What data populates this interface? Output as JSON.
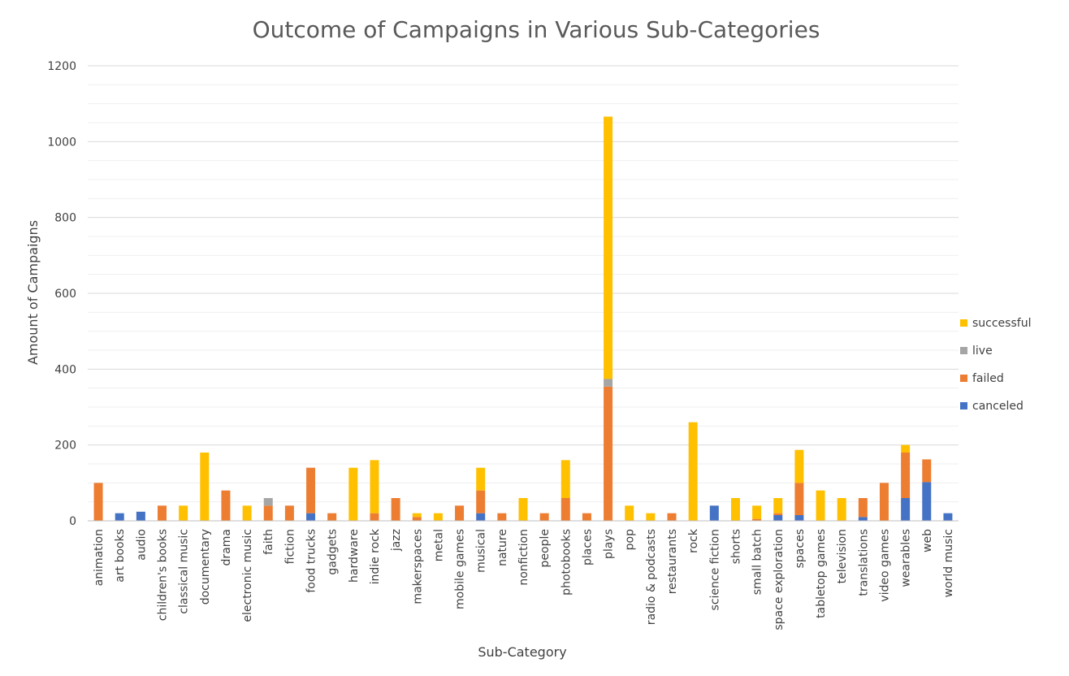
{
  "chart_data": {
    "type": "bar",
    "stacked": true,
    "title": "Outcome of Campaigns in Various Sub-Categories",
    "xlabel": "Sub-Category",
    "ylabel": "Amount of Campaigns",
    "ylim": [
      0,
      1200
    ],
    "yticks": [
      0,
      200,
      400,
      600,
      800,
      1000,
      1200
    ],
    "grid": true,
    "legend_position": "right",
    "categories": [
      "animation",
      "art books",
      "audio",
      "children's books",
      "classical music",
      "documentary",
      "drama",
      "electronic music",
      "faith",
      "fiction",
      "food trucks",
      "gadgets",
      "hardware",
      "indie rock",
      "jazz",
      "makerspaces",
      "metal",
      "mobile games",
      "musical",
      "nature",
      "nonfiction",
      "people",
      "photobooks",
      "places",
      "plays",
      "pop",
      "radio & podcasts",
      "restaurants",
      "rock",
      "science fiction",
      "shorts",
      "small batch",
      "space exploration",
      "spaces",
      "tabletop games",
      "television",
      "translations",
      "video games",
      "wearables",
      "web",
      "world music"
    ],
    "series": [
      {
        "name": "canceled",
        "color": "#4472C4",
        "values": [
          0,
          20,
          24,
          0,
          0,
          0,
          0,
          0,
          0,
          0,
          20,
          0,
          0,
          0,
          0,
          0,
          0,
          0,
          20,
          0,
          0,
          0,
          0,
          0,
          0,
          0,
          0,
          0,
          0,
          40,
          0,
          0,
          15,
          15,
          0,
          0,
          10,
          0,
          60,
          102,
          20
        ]
      },
      {
        "name": "failed",
        "color": "#ED7D31",
        "values": [
          100,
          0,
          0,
          40,
          0,
          0,
          80,
          0,
          40,
          40,
          120,
          20,
          0,
          20,
          60,
          10,
          0,
          40,
          60,
          20,
          0,
          20,
          60,
          20,
          354,
          0,
          0,
          20,
          0,
          0,
          0,
          5,
          5,
          85,
          0,
          0,
          50,
          100,
          120,
          60,
          0
        ]
      },
      {
        "name": "live",
        "color": "#A5A5A5",
        "values": [
          0,
          0,
          0,
          0,
          0,
          0,
          0,
          0,
          20,
          0,
          0,
          0,
          0,
          0,
          0,
          0,
          0,
          0,
          0,
          0,
          0,
          0,
          0,
          0,
          20,
          0,
          0,
          0,
          0,
          0,
          0,
          0,
          0,
          0,
          0,
          0,
          0,
          0,
          0,
          0,
          0
        ]
      },
      {
        "name": "successful",
        "color": "#FFC000",
        "values": [
          0,
          0,
          0,
          0,
          40,
          180,
          0,
          40,
          0,
          0,
          0,
          0,
          140,
          140,
          0,
          10,
          20,
          0,
          60,
          0,
          60,
          0,
          100,
          0,
          692,
          40,
          20,
          0,
          260,
          0,
          60,
          35,
          40,
          87,
          80,
          60,
          0,
          0,
          20,
          0,
          0
        ]
      }
    ],
    "legend_order": [
      "successful",
      "live",
      "failed",
      "canceled"
    ]
  }
}
